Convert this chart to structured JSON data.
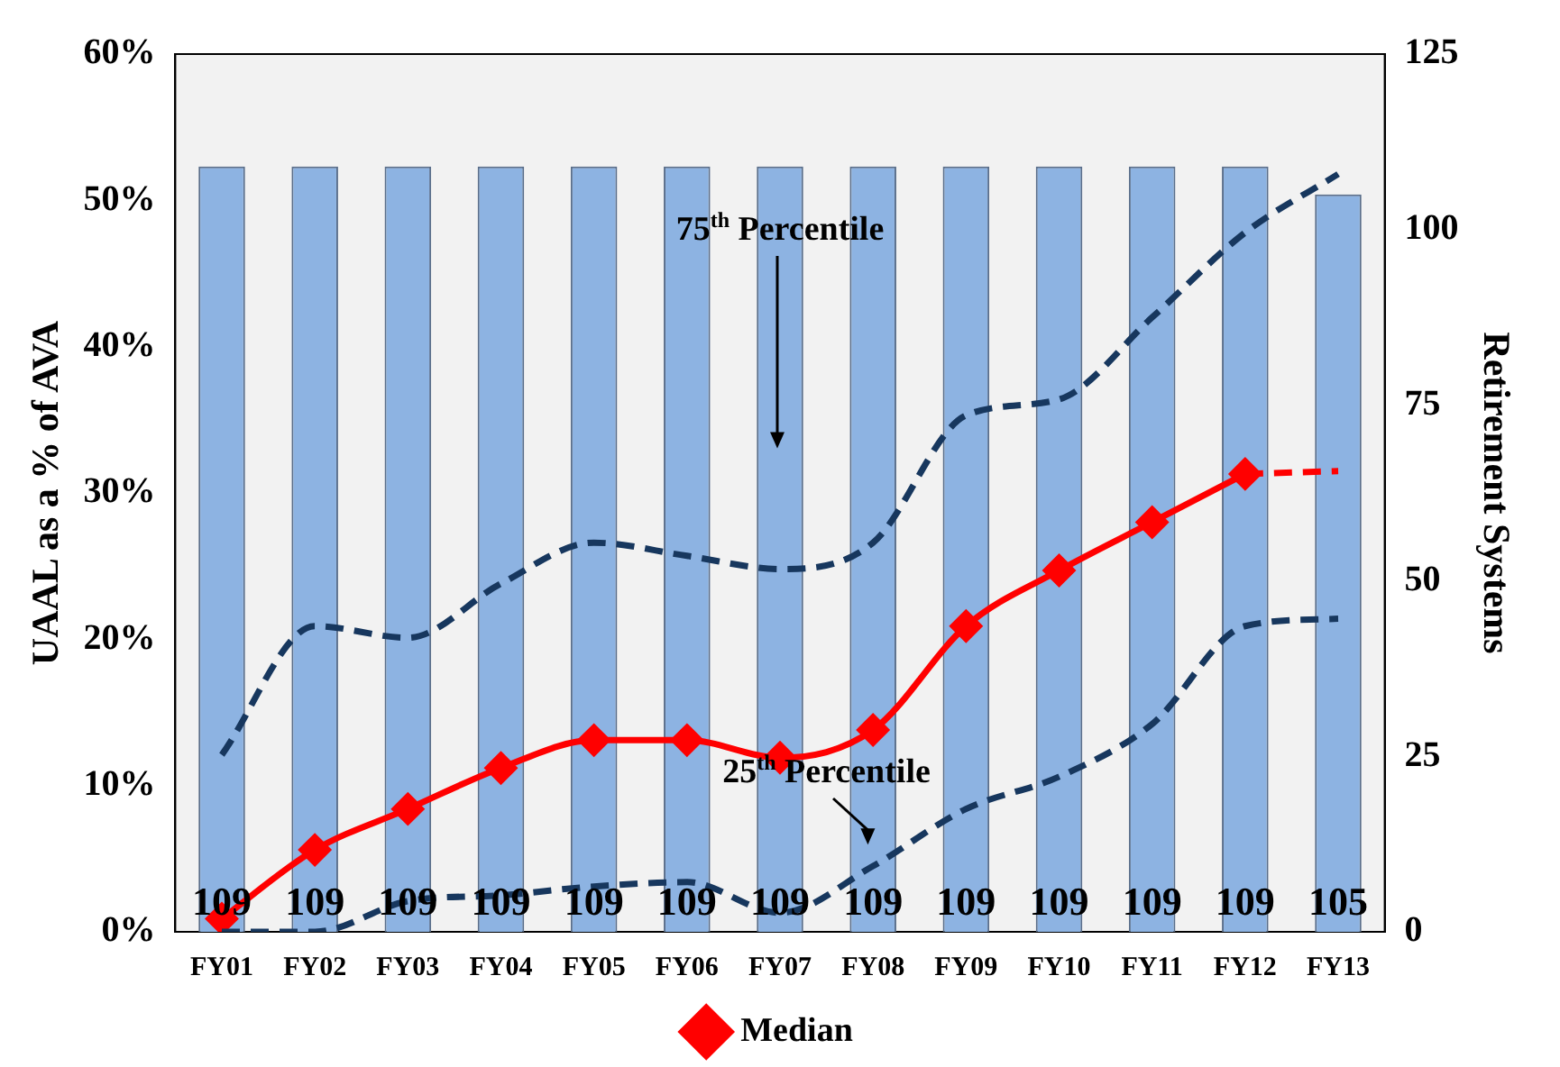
{
  "chart_data": {
    "type": "line",
    "xlabel": null,
    "ylabel": "UAAL as a % of AVA",
    "y2label": "Retirement Systems",
    "categories": [
      "FY01",
      "FY02",
      "FY03",
      "FY04",
      "FY05",
      "FY06",
      "FY07",
      "FY08",
      "FY09",
      "FY10",
      "FY11",
      "FY12",
      "FY13"
    ],
    "series": [
      {
        "type": "bar",
        "axis": "y2",
        "color": "#8db3e2",
        "values": [
          109,
          109,
          109,
          109,
          109,
          109,
          109,
          109,
          109,
          109,
          109,
          109,
          105
        ],
        "value_labels": [
          "109",
          "109",
          "109",
          "109",
          "109",
          "109",
          "109",
          "109",
          "109",
          "109",
          "109",
          "109",
          "105"
        ]
      },
      {
        "color": "#17375e",
        "line_style": "dashed",
        "marker": "none",
        "values": [
          12.1,
          20.9,
          20.1,
          23.8,
          26.6,
          25.7,
          24.8,
          26.6,
          35.3,
          36.4,
          42.0,
          47.8,
          51.8
        ]
      },
      {
        "color": "#17375e",
        "line_style": "dashed",
        "marker": "none",
        "values": [
          0,
          0,
          2.1,
          2.5,
          3.1,
          3.4,
          1.3,
          4.5,
          8.4,
          10.6,
          14.2,
          20.9,
          21.4
        ]
      },
      {
        "name": "Median",
        "color": "#ff0000",
        "line_style": "solid",
        "marker": "diamond",
        "values": [
          0.9,
          5.6,
          8.4,
          11.2,
          13.1,
          13.1,
          11.9,
          13.8,
          20.9,
          24.7,
          28.0,
          31.3,
          null
        ]
      },
      {
        "color": "#ff0000",
        "line_style": "dashed",
        "marker": "none",
        "values": [
          null,
          null,
          null,
          null,
          null,
          null,
          null,
          null,
          null,
          null,
          null,
          31.3,
          31.5
        ]
      }
    ],
    "ylim": [
      0,
      60
    ],
    "yticks": [
      {
        "value": 0,
        "label": "0%"
      },
      {
        "value": 10,
        "label": "10%"
      },
      {
        "value": 20,
        "label": "20%"
      },
      {
        "value": 30,
        "label": "30%"
      },
      {
        "value": 40,
        "label": "40%"
      },
      {
        "value": 50,
        "label": "50%"
      },
      {
        "value": 60,
        "label": "60%"
      }
    ],
    "y2lim": [
      0,
      125
    ],
    "y2ticks": [
      0,
      25,
      50,
      75,
      100,
      125
    ],
    "grid": false,
    "legend": "bottom",
    "annotations": [
      "75$^{th}$ Percentile",
      "25$^{th}$ Percentile"
    ]
  }
}
